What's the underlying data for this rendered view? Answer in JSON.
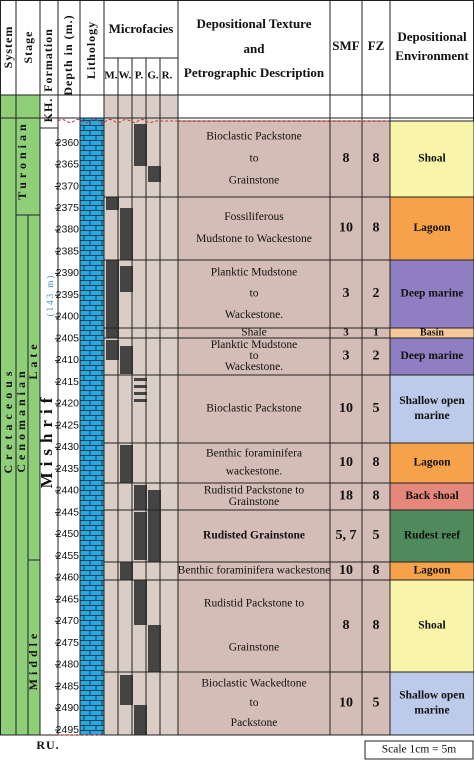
{
  "header": {
    "system": "System",
    "stage": "Stage",
    "formation": "Formation",
    "depth": "Depth in (m.)",
    "lithology": "Lithology",
    "microfacies": "Microfacies",
    "microfacies_codes": [
      "M.",
      "W.",
      "P.",
      "G.",
      "R."
    ],
    "texture": [
      "Depositional Texture",
      "and",
      "Petrographic Description"
    ],
    "smf": "SMF",
    "fz": "FZ",
    "environment": [
      "Depositional",
      "Environment"
    ]
  },
  "stratigraphy": {
    "system": "Cretaceous",
    "stages": [
      "Turonian",
      "Cenomanian"
    ],
    "substages": [
      "Late",
      "Middle"
    ],
    "formations": [
      "KH.",
      "Mishrif",
      "RU."
    ],
    "thickness": "(143 m)"
  },
  "depth_ticks": [
    2360,
    2365,
    2370,
    2375,
    2380,
    2385,
    2390,
    2395,
    2400,
    2405,
    2410,
    2415,
    2420,
    2425,
    2430,
    2435,
    2440,
    2445,
    2450,
    2455,
    2460,
    2465,
    2470,
    2475,
    2480,
    2485,
    2490,
    2495
  ],
  "units": [
    {
      "description": [
        "Bioclastic Packstone",
        "to",
        "Grainstone"
      ],
      "smf": "8",
      "fz": "8",
      "environment": [
        "Shoal"
      ],
      "color": "#f8f4a8"
    },
    {
      "description": [
        "Fossiliferous",
        "Mudstone to Wackestone"
      ],
      "smf": "10",
      "fz": "8",
      "environment": [
        "Lagoon"
      ],
      "color": "#f6a24a"
    },
    {
      "description": [
        "Planktic Mudstone",
        "to",
        "Wackestone."
      ],
      "smf": "3",
      "fz": "2",
      "environment": [
        "Deep marine"
      ],
      "color": "#8f7fc2"
    },
    {
      "description": [
        "Shale"
      ],
      "smf": "3",
      "fz": "1",
      "environment": [
        "Basin"
      ],
      "color": "#f6c998"
    },
    {
      "description": [
        "Planktic Mudstone",
        "to",
        "Wackestone."
      ],
      "smf": "3",
      "fz": "2",
      "environment": [
        "Deep marine"
      ],
      "color": "#8f7fc2"
    },
    {
      "description": [
        "Bioclastic Packstone"
      ],
      "smf": "10",
      "fz": "5",
      "environment": [
        "Shallow open",
        "marine"
      ],
      "color": "#bccbea"
    },
    {
      "description": [
        "Benthic foraminifera",
        "wackestone."
      ],
      "smf": "10",
      "fz": "8",
      "environment": [
        "Lagoon"
      ],
      "color": "#f6a24a"
    },
    {
      "description": [
        "Rudistid Packstone to",
        "Grainstone"
      ],
      "smf": "18",
      "fz": "8",
      "environment": [
        "Back shoal"
      ],
      "color": "#e5877a"
    },
    {
      "description": [
        "Rudisted Grainstone"
      ],
      "smf": "5, 7",
      "fz": "5",
      "environment": [
        "Rudest reef"
      ],
      "color": "#4f8a5c"
    },
    {
      "description": [
        "Benthic  foraminifera wackestone"
      ],
      "smf": "10",
      "fz": "8",
      "environment": [
        "Lagoon"
      ],
      "color": "#f6a24a"
    },
    {
      "description": [
        "Rudistid Packstone to",
        "",
        "Grainstone"
      ],
      "smf": "8",
      "fz": "8",
      "environment": [
        "Shoal"
      ],
      "color": "#f8f4a8"
    },
    {
      "description": [
        "Bioclastic Wackedtone",
        "to",
        "Packstone"
      ],
      "smf": "10",
      "fz": "5",
      "environment": [
        "Shallow open",
        "marine"
      ],
      "color": "#bccbea"
    }
  ],
  "scale": "Scale 1cm = 5m"
}
